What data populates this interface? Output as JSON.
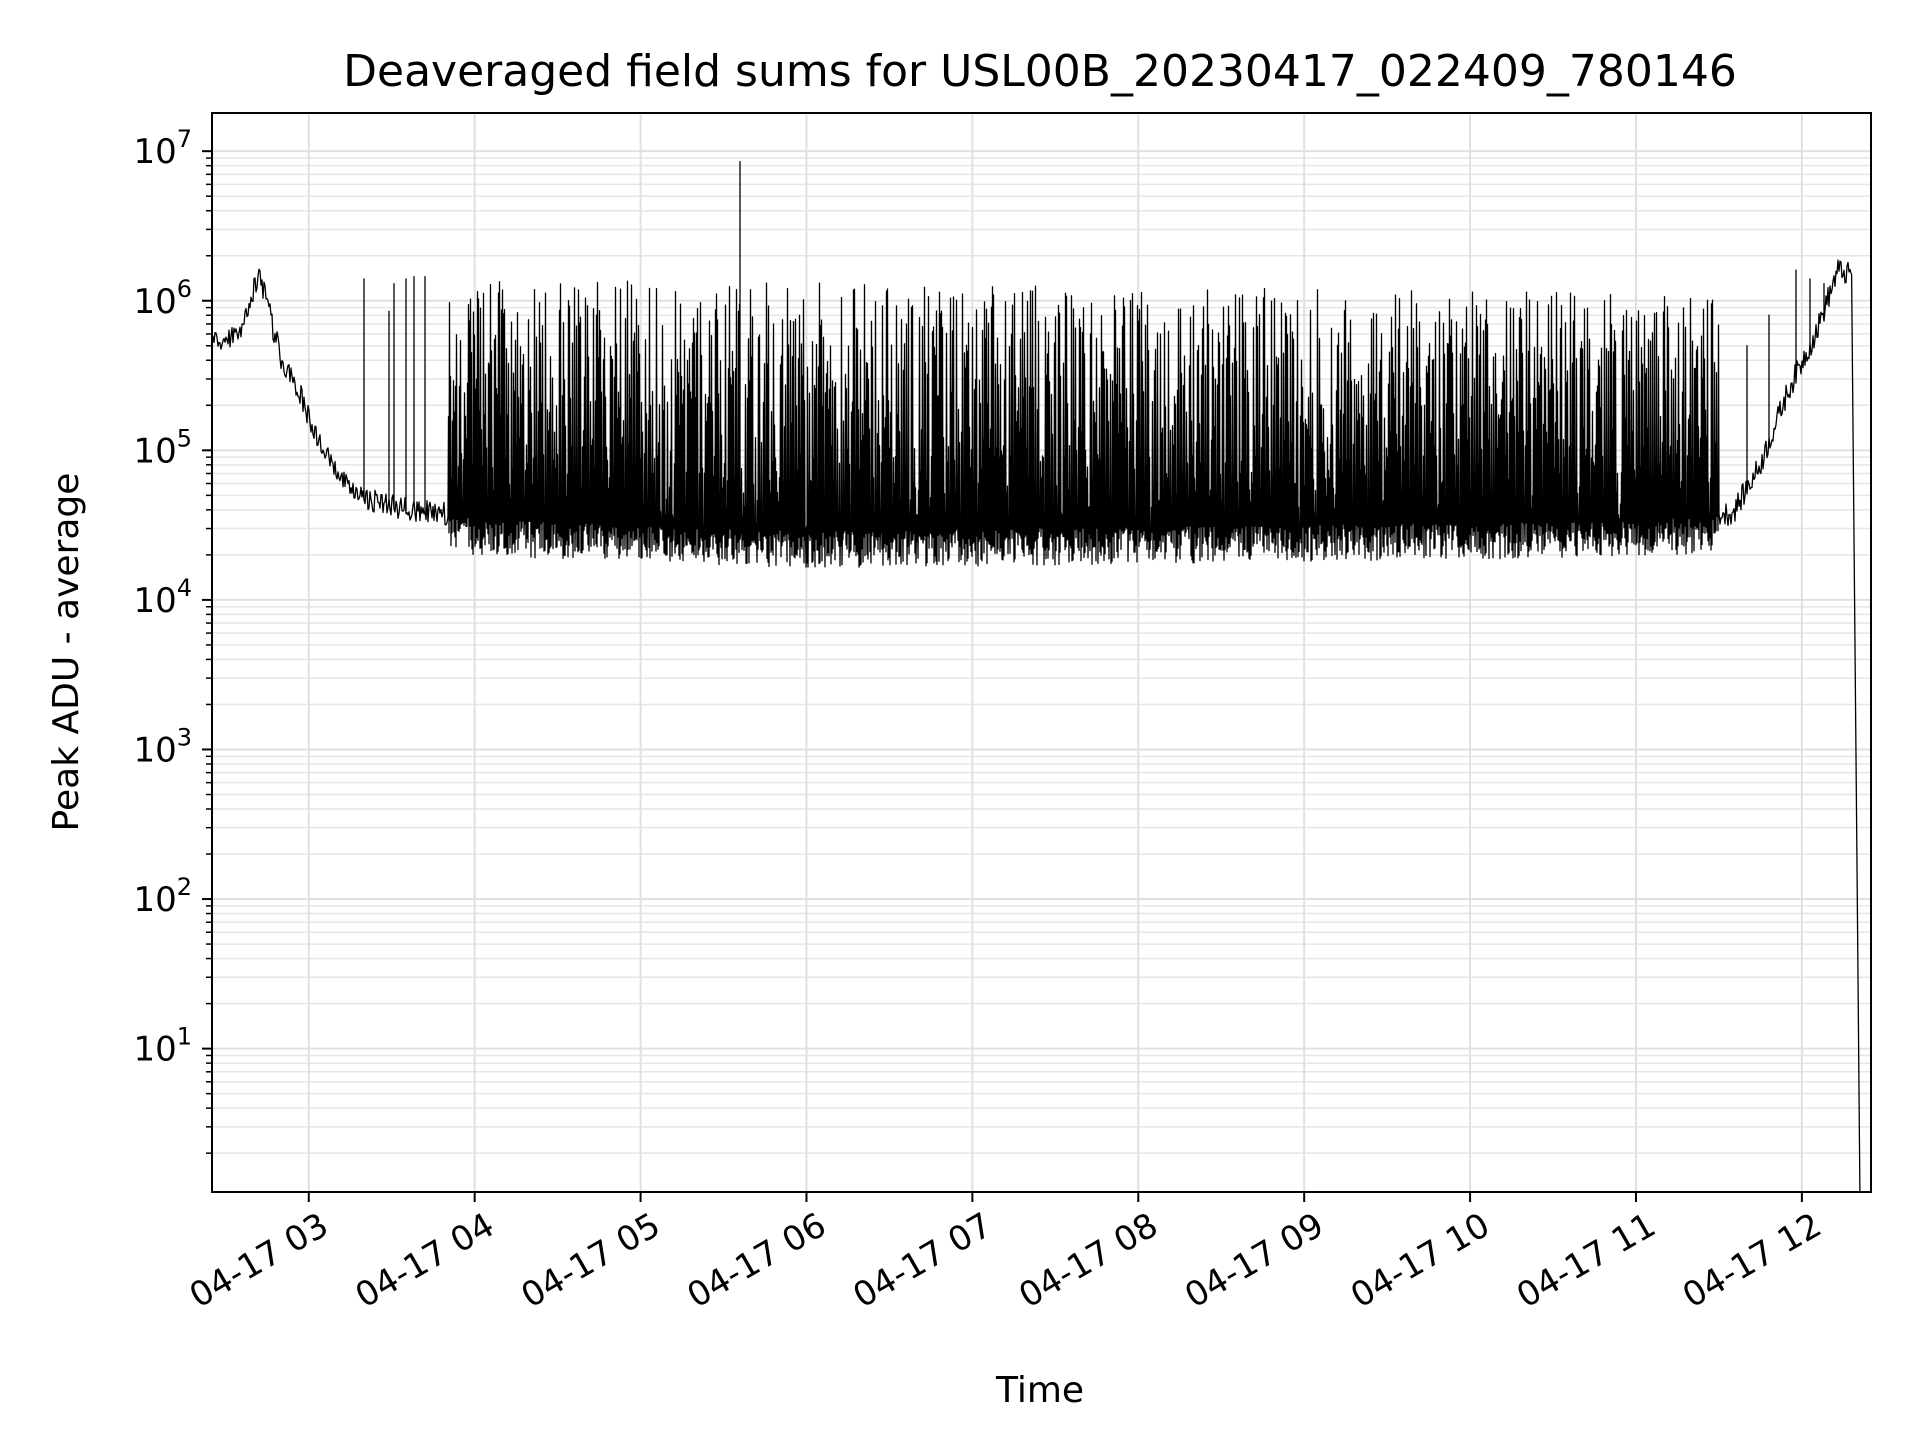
{
  "chart_data": {
    "type": "line",
    "title": "Deaveraged field sums for USL00B_20230417_022409_780146",
    "xlabel": "Time",
    "ylabel": "Peak ADU - average",
    "yscale": "log",
    "ylim": [
      1.1,
      18000000
    ],
    "xlim": [
      "04-17 02:25",
      "04-17 12:25"
    ],
    "grid": true,
    "x_ticks": [
      "04-17 03",
      "04-17 04",
      "04-17 05",
      "04-17 06",
      "04-17 07",
      "04-17 08",
      "04-17 09",
      "04-17 10",
      "04-17 11",
      "04-17 12"
    ],
    "y_ticks": [
      {
        "base": "10",
        "exp": "1"
      },
      {
        "base": "10",
        "exp": "2"
      },
      {
        "base": "10",
        "exp": "3"
      },
      {
        "base": "10",
        "exp": "4"
      },
      {
        "base": "10",
        "exp": "5"
      },
      {
        "base": "10",
        "exp": "6"
      },
      {
        "base": "10",
        "exp": "7"
      }
    ],
    "line_color": "#000000",
    "series": [
      {
        "floor": [
          [
            "04-17 02:25",
            500000
          ],
          [
            "04-17 02:35",
            600000
          ],
          [
            "04-17 02:42",
            1600000
          ],
          [
            "04-17 02:50",
            400000
          ],
          [
            "04-17 02:57",
            230000
          ],
          [
            "04-17 03:05",
            100000
          ],
          [
            "04-17 03:15",
            52000
          ],
          [
            "04-17 03:30",
            42000
          ],
          [
            "04-17 04:00",
            35000
          ],
          [
            "04-17 05:00",
            32000
          ],
          [
            "04-17 06:00",
            29000
          ],
          [
            "04-17 07:00",
            30000
          ],
          [
            "04-17 08:00",
            31000
          ],
          [
            "04-17 09:00",
            32000
          ],
          [
            "04-17 10:00",
            33000
          ],
          [
            "04-17 11:00",
            34000
          ],
          [
            "04-17 11:35",
            38000
          ],
          [
            "04-17 11:45",
            80000
          ],
          [
            "04-17 11:55",
            250000
          ],
          [
            "04-17 12:05",
            600000
          ],
          [
            "04-17 12:13",
            1600000
          ],
          [
            "04-17 12:17",
            1500000
          ]
        ],
        "spikes": [
          [
            "04-17 03:20",
            1400000
          ],
          [
            "04-17 03:29",
            850000
          ],
          [
            "04-17 03:31",
            1300000
          ],
          [
            "04-17 03:35",
            1400000
          ],
          [
            "04-17 03:38",
            1450000
          ],
          [
            "04-17 03:42",
            1450000
          ],
          [
            "04-17 05:36",
            8500000
          ],
          [
            "04-17 11:40",
            500000
          ],
          [
            "04-17 11:48",
            800000
          ],
          [
            "04-17 11:58",
            1600000
          ],
          [
            "04-17 12:03",
            1400000
          ],
          [
            "04-17 12:08",
            1300000
          ]
        ],
        "dense_band": {
          "from": "04-17 03:50",
          "to": "04-17 11:30",
          "top_start": 1400000,
          "top_end": 1100000,
          "bottom_min": 16000
        },
        "drop": [
          [
            "04-17 12:18",
            1500000
          ],
          [
            "04-17 12:20",
            120
          ],
          [
            "04-17 12:21",
            1.1
          ]
        ]
      }
    ]
  }
}
